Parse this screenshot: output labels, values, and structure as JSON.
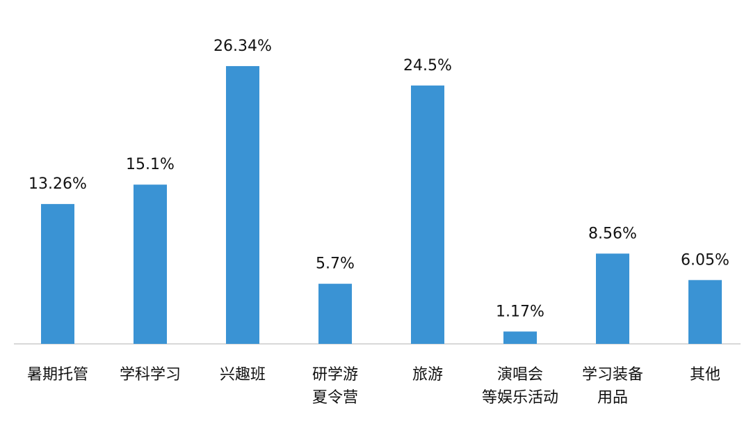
{
  "chart_data": {
    "type": "bar",
    "categories": [
      [
        "暑期托管"
      ],
      [
        "学科学习"
      ],
      [
        "兴趣班"
      ],
      [
        "研学游",
        "夏令营"
      ],
      [
        "旅游"
      ],
      [
        "演唱会",
        "等娱乐活动"
      ],
      [
        "学习装备",
        "用品"
      ],
      [
        "其他"
      ]
    ],
    "values": [
      13.26,
      15.1,
      26.34,
      5.7,
      24.5,
      1.17,
      8.56,
      6.05
    ],
    "value_labels": [
      "13.26%",
      "15.1%",
      "26.34%",
      "5.7%",
      "24.5%",
      "1.17%",
      "8.56%",
      "6.05%"
    ],
    "color": "#3a93d4"
  }
}
